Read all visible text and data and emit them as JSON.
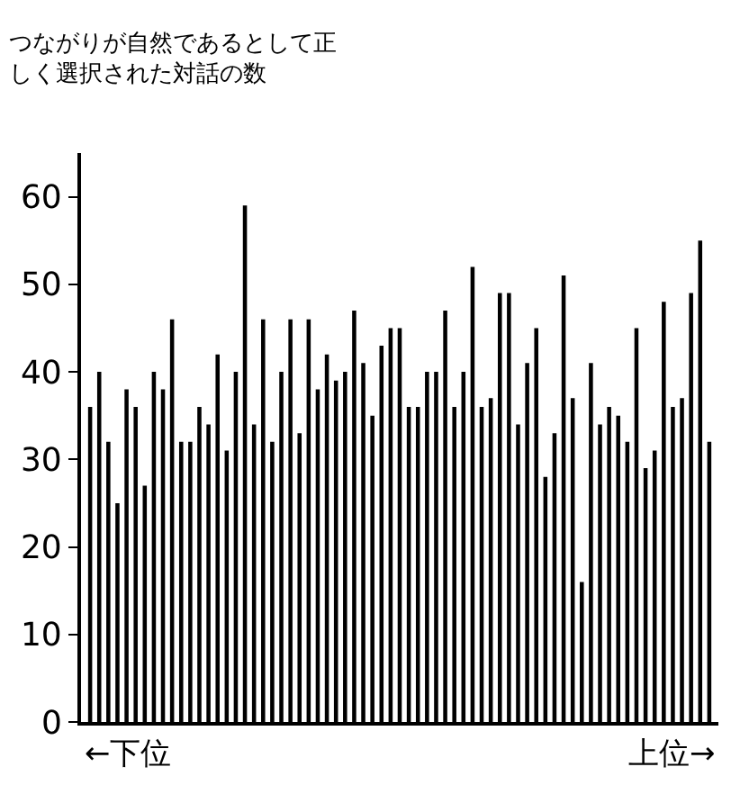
{
  "chart_data": {
    "type": "bar",
    "ylabel": "つながりが自然であるとして正しく選択された対話の数",
    "categories": [
      null,
      null,
      null,
      null,
      null,
      null,
      null,
      null,
      null,
      null,
      null,
      null,
      null,
      null,
      null,
      null,
      null,
      null,
      null,
      null,
      null,
      null,
      null,
      null,
      null,
      null,
      null,
      null,
      null,
      null,
      null,
      null,
      null,
      null,
      null,
      null,
      null,
      null,
      null,
      null,
      null,
      null,
      null,
      null,
      null,
      null,
      null,
      null,
      null,
      null,
      null,
      null,
      null,
      null,
      null,
      null,
      null,
      null,
      null,
      null,
      null,
      null,
      null,
      null,
      null,
      null,
      null,
      null,
      null
    ],
    "values": [
      36,
      40,
      32,
      25,
      38,
      36,
      27,
      40,
      38,
      46,
      32,
      32,
      36,
      34,
      42,
      31,
      40,
      59,
      34,
      46,
      32,
      40,
      46,
      33,
      46,
      38,
      42,
      39,
      40,
      47,
      41,
      35,
      43,
      45,
      45,
      36,
      36,
      40,
      40,
      47,
      36,
      40,
      52,
      36,
      37,
      49,
      49,
      34,
      41,
      45,
      28,
      33,
      51,
      37,
      16,
      41,
      34,
      36,
      35,
      32,
      45,
      29,
      31,
      48,
      36,
      37,
      49,
      55,
      32
    ],
    "color": "#000000",
    "ylim": [
      0,
      65
    ],
    "yticks": [
      0,
      10,
      20,
      30,
      40,
      50,
      60
    ],
    "tick_labels": "y",
    "annotations": [
      "←下位",
      "上位→"
    ]
  }
}
